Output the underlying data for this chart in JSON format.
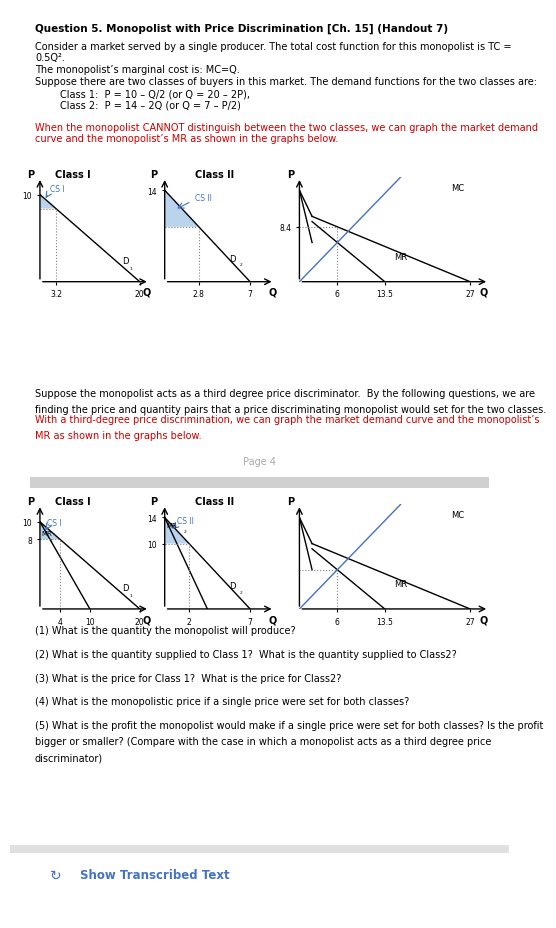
{
  "title": "Question 5. Monopolist with Price Discrimination [Ch. 15] (Handout 7)",
  "para1": "Consider a market served by a single producer. The total cost function for this monopolist is TC =\n0.5Q².",
  "para2": "The monopolist’s marginal cost is: MC=Q.",
  "para3": "Suppose there are two classes of buyers in this market. The demand functions for the two classes are:",
  "class1_demand": "Class 1:  P = 10 – Q/2 (or Q = 20 – 2P),",
  "class2_demand": "Class 2:  P = 14 – 2Q (or Q = 7 – P/2)",
  "red_text1": "When the monopolist CANNOT distinguish between the two classes, we can graph the market demand\ncurve and the monopolist’s MR as shown in the graphs below.",
  "para4a": "Suppose the monopolist acts as a third degree price discriminator.  By the following questions, we are",
  "para4b": "finding the price and quantity pairs that a price discriminating monopolist would set for the two classes.",
  "red_text2a": "With a third-degree price discrimination, we can graph the market demand curve and the monopolist’s",
  "red_text2b": "MR as shown in the graphs below.",
  "page_label": "Page 4",
  "q1": "(1) What is the quantity the monopolist will produce?",
  "q2": "(2) What is the quantity supplied to Class 1?  What is the quantity supplied to Class2?",
  "q3": "(3) What is the price for Class 1?  What is the price for Class2?",
  "q4": "(4) What is the monopolistic price if a single price were set for both classes?",
  "q5a": "(5) What is the profit the monopolist would make if a single price were set for both classes? Is the profit",
  "q5b": "bigger or smaller? (Compare with the case in which a monopolist acts as a third degree price",
  "q5c": "discriminator)",
  "show_transcribed": "Show Transcribed Text",
  "bg_color": "#ffffff",
  "text_color": "#000000",
  "red_color": "#cc0000",
  "blue_color": "#4472C4",
  "light_blue_fill": "#9dc3e6",
  "gray_bar_color": "#d0d0d0",
  "page_gray": "#aaaaaa"
}
